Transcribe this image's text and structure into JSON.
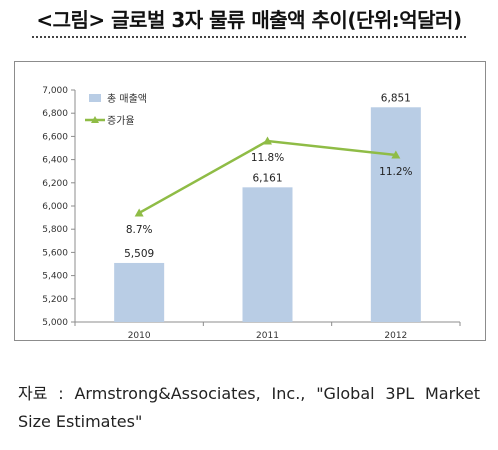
{
  "title": "<그림> 글로벌 3자 물류 매출액 추이(단위:억달러)",
  "source": "자료 : Armstrong&Associates, Inc., \"Global 3PL Market Size Estimates\"",
  "chart_data": {
    "type": "bar",
    "categories": [
      "2010",
      "2011",
      "2012"
    ],
    "series": [
      {
        "name": "총 매출액",
        "type": "bar",
        "axis": "left",
        "values": [
          5509,
          6161,
          6851
        ],
        "labels": [
          "5,509",
          "6,161",
          "6,851"
        ],
        "color": "#b9cde5"
      },
      {
        "name": "증가율",
        "type": "line",
        "axis": "secondary",
        "values": [
          8.7,
          11.8,
          11.2
        ],
        "labels": [
          "8.7%",
          "11.8%",
          "11.2%"
        ],
        "color": "#8fbc46"
      }
    ],
    "yticks": [
      "5,000",
      "5,200",
      "5,400",
      "5,600",
      "5,800",
      "6,000",
      "6,200",
      "6,400",
      "6,600",
      "6,800",
      "7,000"
    ],
    "ylim": [
      5000,
      7000
    ],
    "y2lim": [
      4,
      14
    ],
    "legend_position": "top-left",
    "grid": false
  }
}
